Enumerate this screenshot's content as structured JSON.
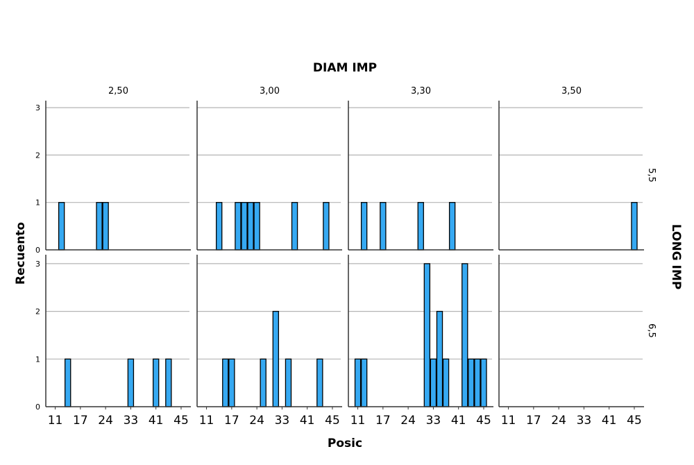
{
  "chart_data": {
    "type": "bar",
    "subtype": "faceted-histogram",
    "column_title": "DIAM IMP",
    "row_title": "LONG IMP",
    "xlabel": "Posic",
    "ylabel": "Recuento",
    "columns": [
      "2,50",
      "3,00",
      "3,30",
      "3,50"
    ],
    "rows": [
      "5,5",
      "6,5"
    ],
    "x_ticks": [
      11,
      17,
      24,
      33,
      41,
      45
    ],
    "y_ticks": [
      0,
      1,
      2,
      3
    ],
    "ylim": [
      0,
      3
    ],
    "grid": true,
    "bar_color": "#36a9f2",
    "bar_outline": "#000000",
    "panels": [
      {
        "row": "5,5",
        "column": "2,50",
        "bars": [
          {
            "x": 13,
            "count": 1
          },
          {
            "x": 22,
            "count": 1
          },
          {
            "x": 24,
            "count": 1
          }
        ]
      },
      {
        "row": "5,5",
        "column": "3,00",
        "bars": [
          {
            "x": 14,
            "count": 1
          },
          {
            "x": 19,
            "count": 1
          },
          {
            "x": 21,
            "count": 1
          },
          {
            "x": 22,
            "count": 1
          },
          {
            "x": 24,
            "count": 1
          },
          {
            "x": 37,
            "count": 1
          },
          {
            "x": 44,
            "count": 1
          }
        ]
      },
      {
        "row": "5,5",
        "column": "3,30",
        "bars": [
          {
            "x": 13,
            "count": 1
          },
          {
            "x": 17,
            "count": 1
          },
          {
            "x": 29,
            "count": 1
          },
          {
            "x": 39,
            "count": 1
          }
        ]
      },
      {
        "row": "5,5",
        "column": "3,50",
        "bars": [
          {
            "x": 45,
            "count": 1
          }
        ]
      },
      {
        "row": "6,5",
        "column": "2,50",
        "bars": [
          {
            "x": 14,
            "count": 1
          },
          {
            "x": 33,
            "count": 1
          },
          {
            "x": 41,
            "count": 1
          },
          {
            "x": 43,
            "count": 1
          }
        ]
      },
      {
        "row": "6,5",
        "column": "3,00",
        "bars": [
          {
            "x": 16,
            "count": 1
          },
          {
            "x": 17,
            "count": 1
          },
          {
            "x": 26,
            "count": 1
          },
          {
            "x": 31,
            "count": 2
          },
          {
            "x": 35,
            "count": 1
          },
          {
            "x": 43,
            "count": 1
          }
        ]
      },
      {
        "row": "6,5",
        "column": "3,30",
        "bars": [
          {
            "x": 11,
            "count": 1
          },
          {
            "x": 13,
            "count": 1
          },
          {
            "x": 31,
            "count": 3
          },
          {
            "x": 33,
            "count": 1
          },
          {
            "x": 35,
            "count": 2
          },
          {
            "x": 37,
            "count": 1
          },
          {
            "x": 42,
            "count": 3
          },
          {
            "x": 43,
            "count": 1
          },
          {
            "x": 44,
            "count": 1
          },
          {
            "x": 45,
            "count": 1
          }
        ]
      },
      {
        "row": "6,5",
        "column": "3,50",
        "bars": []
      }
    ]
  }
}
